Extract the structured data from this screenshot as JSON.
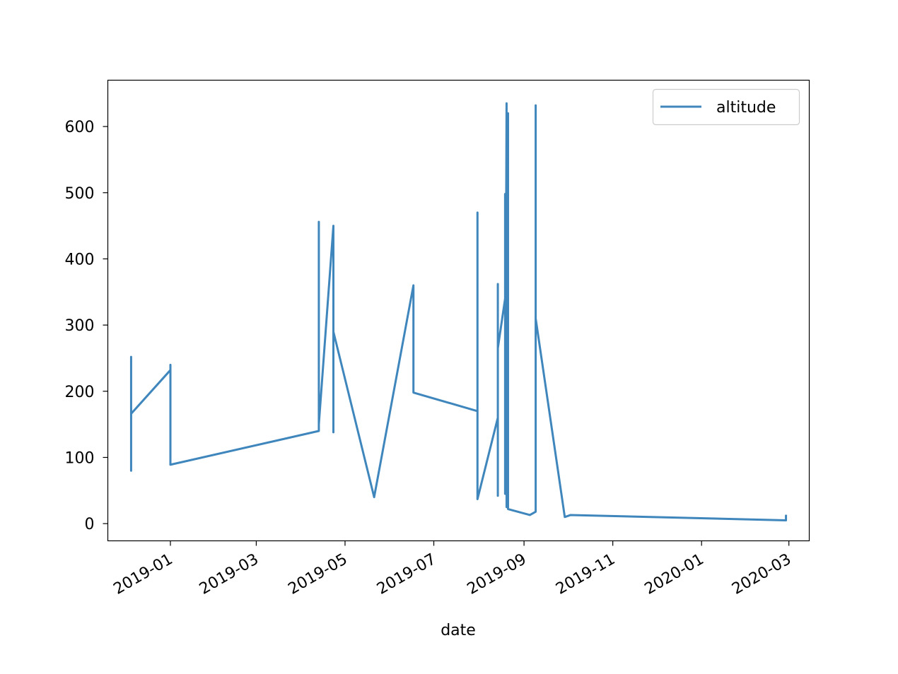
{
  "chart_data": {
    "type": "line",
    "title": "",
    "xlabel": "date",
    "ylabel": "",
    "x_is_date": true,
    "xlim": [
      "2018-11-19",
      "2020-03-15"
    ],
    "ylim": [
      -26,
      670
    ],
    "xticks": [
      "2019-01",
      "2019-03",
      "2019-05",
      "2019-07",
      "2019-09",
      "2019-11",
      "2020-01",
      "2020-03"
    ],
    "yticks": [
      0,
      100,
      200,
      300,
      400,
      500,
      600
    ],
    "grid": false,
    "legend": {
      "position": "top-right",
      "entries": [
        "altitude"
      ]
    },
    "colors": {
      "altitude": "#3f86bc"
    },
    "series": [
      {
        "name": "altitude",
        "points": [
          [
            "2018-12-05",
            252
          ],
          [
            "2018-12-05",
            80
          ],
          [
            "2018-12-05",
            166
          ],
          [
            "2019-01-01",
            232
          ],
          [
            "2019-01-01",
            240
          ],
          [
            "2019-01-01",
            89
          ],
          [
            "2019-04-13",
            140
          ],
          [
            "2019-04-13",
            456
          ],
          [
            "2019-04-13",
            150
          ],
          [
            "2019-04-23",
            450
          ],
          [
            "2019-04-23",
            138
          ],
          [
            "2019-04-23",
            290
          ],
          [
            "2019-05-21",
            40
          ],
          [
            "2019-06-17",
            360
          ],
          [
            "2019-06-17",
            198
          ],
          [
            "2019-07-31",
            170
          ],
          [
            "2019-07-31",
            470
          ],
          [
            "2019-07-31",
            37
          ],
          [
            "2019-08-14",
            160
          ],
          [
            "2019-08-14",
            362
          ],
          [
            "2019-08-14",
            42
          ],
          [
            "2019-08-14",
            265
          ],
          [
            "2019-08-19",
            340
          ],
          [
            "2019-08-19",
            498
          ],
          [
            "2019-08-19",
            45
          ],
          [
            "2019-08-20",
            635
          ],
          [
            "2019-08-20",
            25
          ],
          [
            "2019-08-21",
            620
          ],
          [
            "2019-08-21",
            22
          ],
          [
            "2019-09-05",
            13
          ],
          [
            "2019-09-09",
            18
          ],
          [
            "2019-09-09",
            632
          ],
          [
            "2019-09-09",
            310
          ],
          [
            "2019-09-29",
            10
          ],
          [
            "2019-10-03",
            13
          ],
          [
            "2020-02-28",
            5
          ],
          [
            "2020-02-28",
            12
          ],
          [
            "2020-02-28",
            5
          ]
        ]
      }
    ]
  }
}
